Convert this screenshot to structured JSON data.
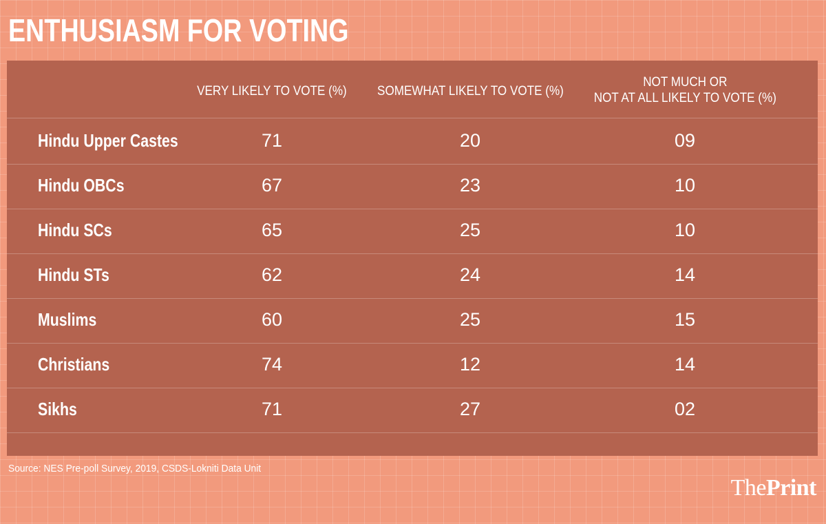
{
  "colors": {
    "background": "#f29a7d",
    "panel": "#b4634f",
    "text": "#ffffff"
  },
  "chart_data": {
    "type": "table",
    "title": "ENTHUSIASM FOR VOTING",
    "columns": [
      "VERY LIKELY TO VOTE (%)",
      "SOMEWHAT LIKELY TO VOTE (%)",
      "NOT MUCH OR\nNOT AT ALL LIKELY TO VOTE (%)"
    ],
    "rows": [
      {
        "label": "Hindu Upper Castes",
        "values": [
          "71",
          "20",
          "09"
        ]
      },
      {
        "label": "Hindu OBCs",
        "values": [
          "67",
          "23",
          "10"
        ]
      },
      {
        "label": "Hindu SCs",
        "values": [
          "65",
          "25",
          "10"
        ]
      },
      {
        "label": "Hindu STs",
        "values": [
          "62",
          "24",
          "14"
        ]
      },
      {
        "label": "Muslims",
        "values": [
          "60",
          "25",
          "15"
        ]
      },
      {
        "label": "Christians",
        "values": [
          "74",
          "12",
          "14"
        ]
      },
      {
        "label": "Sikhs",
        "values": [
          "71",
          "27",
          "02"
        ]
      }
    ],
    "source": "Source: NES Pre-poll Survey, 2019, CSDS-Lokniti Data Unit"
  },
  "branding": {
    "logo_the": "The",
    "logo_print": "Print"
  }
}
